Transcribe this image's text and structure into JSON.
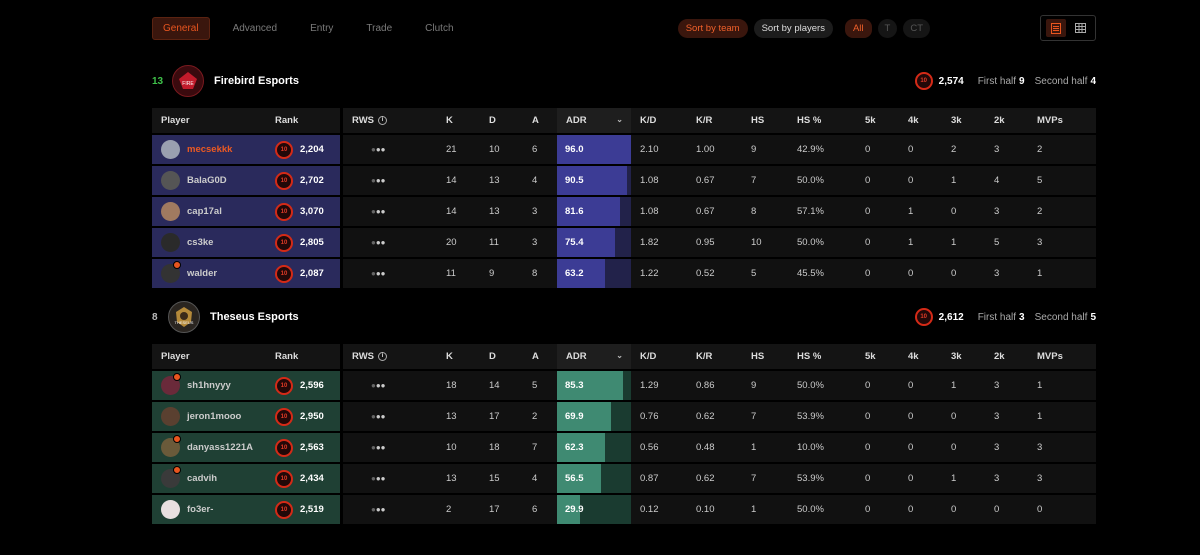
{
  "tabs": [
    "General",
    "Advanced",
    "Entry",
    "Trade",
    "Clutch"
  ],
  "controls": {
    "sort_by_team": "Sort by team",
    "sort_by_players": "Sort by players",
    "all": "All",
    "t": "T",
    "ct": "CT"
  },
  "columns": [
    "Player",
    "Rank",
    "RWS",
    "K",
    "D",
    "A",
    "ADR",
    "K/D",
    "K/R",
    "HS",
    "HS %",
    "5k",
    "4k",
    "3k",
    "2k",
    "MVPs"
  ],
  "colors": {
    "accent": "#e8551f",
    "team1": "#2a2a5c",
    "team2": "#1f4034"
  },
  "teams": [
    {
      "score": "13",
      "score_color": "#3fc24a",
      "name": "Firebird Esports",
      "avg_elo": "2,574",
      "first_half_label": "First half",
      "first_half": "9",
      "second_half_label": "Second half",
      "second_half": "4",
      "players": [
        {
          "name": "mecsekkk",
          "elo": "2,204",
          "k": "21",
          "d": "10",
          "a": "6",
          "adr": "96.0",
          "adr_pct": 100,
          "kd": "2.10",
          "kr": "1.00",
          "hs": "9",
          "hsp": "42.9%",
          "k5": "0",
          "k4": "0",
          "k3": "2",
          "k2": "3",
          "mvps": "2",
          "highlight": true,
          "avatar_color": "#9aa0b0"
        },
        {
          "name": "BalaG0D",
          "elo": "2,702",
          "k": "14",
          "d": "13",
          "a": "4",
          "adr": "90.5",
          "adr_pct": 94,
          "kd": "1.08",
          "kr": "0.67",
          "hs": "7",
          "hsp": "50.0%",
          "k5": "0",
          "k4": "0",
          "k3": "1",
          "k2": "4",
          "mvps": "5",
          "highlight": false,
          "avatar_color": "#555"
        },
        {
          "name": "cap17al",
          "elo": "3,070",
          "k": "14",
          "d": "13",
          "a": "3",
          "adr": "81.6",
          "adr_pct": 85,
          "kd": "1.08",
          "kr": "0.67",
          "hs": "8",
          "hsp": "57.1%",
          "k5": "0",
          "k4": "1",
          "k3": "0",
          "k2": "3",
          "mvps": "2",
          "highlight": false,
          "avatar_color": "#a07a60"
        },
        {
          "name": "cs3ke",
          "elo": "2,805",
          "k": "20",
          "d": "11",
          "a": "3",
          "adr": "75.4",
          "adr_pct": 78,
          "kd": "1.82",
          "kr": "0.95",
          "hs": "10",
          "hsp": "50.0%",
          "k5": "0",
          "k4": "1",
          "k3": "1",
          "k2": "5",
          "mvps": "3",
          "highlight": false,
          "avatar_color": "#2a2a2a"
        },
        {
          "name": "walder",
          "elo": "2,087",
          "k": "11",
          "d": "9",
          "a": "8",
          "adr": "63.2",
          "adr_pct": 65,
          "kd": "1.22",
          "kr": "0.52",
          "hs": "5",
          "hsp": "45.5%",
          "k5": "0",
          "k4": "0",
          "k3": "0",
          "k2": "3",
          "mvps": "1",
          "highlight": false,
          "avatar_color": "#333",
          "marked": true
        }
      ]
    },
    {
      "score": "8",
      "score_color": "#bbbbbb",
      "name": "Theseus Esports",
      "avg_elo": "2,612",
      "first_half_label": "First half",
      "first_half": "3",
      "second_half_label": "Second half",
      "second_half": "5",
      "players": [
        {
          "name": "sh1hnyyy",
          "elo": "2,596",
          "k": "18",
          "d": "14",
          "a": "5",
          "adr": "85.3",
          "adr_pct": 89,
          "kd": "1.29",
          "kr": "0.86",
          "hs": "9",
          "hsp": "50.0%",
          "k5": "0",
          "k4": "0",
          "k3": "1",
          "k2": "3",
          "mvps": "1",
          "highlight": false,
          "avatar_color": "#6a2a3a",
          "marked": true
        },
        {
          "name": "jeron1mooo",
          "elo": "2,950",
          "k": "13",
          "d": "17",
          "a": "2",
          "adr": "69.9",
          "adr_pct": 73,
          "kd": "0.76",
          "kr": "0.62",
          "hs": "7",
          "hsp": "53.9%",
          "k5": "0",
          "k4": "0",
          "k3": "0",
          "k2": "3",
          "mvps": "1",
          "highlight": false,
          "avatar_color": "#5a4030"
        },
        {
          "name": "danyass1221A",
          "elo": "2,563",
          "k": "10",
          "d": "18",
          "a": "7",
          "adr": "62.3",
          "adr_pct": 65,
          "kd": "0.56",
          "kr": "0.48",
          "hs": "1",
          "hsp": "10.0%",
          "k5": "0",
          "k4": "0",
          "k3": "0",
          "k2": "3",
          "mvps": "3",
          "highlight": false,
          "avatar_color": "#6a5a3a",
          "marked": true
        },
        {
          "name": "cadvih",
          "elo": "2,434",
          "k": "13",
          "d": "15",
          "a": "4",
          "adr": "56.5",
          "adr_pct": 59,
          "kd": "0.87",
          "kr": "0.62",
          "hs": "7",
          "hsp": "53.9%",
          "k5": "0",
          "k4": "0",
          "k3": "1",
          "k2": "3",
          "mvps": "3",
          "highlight": false,
          "avatar_color": "#3a3a3a",
          "marked": true
        },
        {
          "name": "fo3er-",
          "elo": "2,519",
          "k": "2",
          "d": "17",
          "a": "6",
          "adr": "29.9",
          "adr_pct": 31,
          "kd": "0.12",
          "kr": "0.10",
          "hs": "1",
          "hsp": "50.0%",
          "k5": "0",
          "k4": "0",
          "k3": "0",
          "k2": "0",
          "mvps": "0",
          "highlight": false,
          "avatar_color": "#e8e0e0"
        }
      ]
    }
  ]
}
